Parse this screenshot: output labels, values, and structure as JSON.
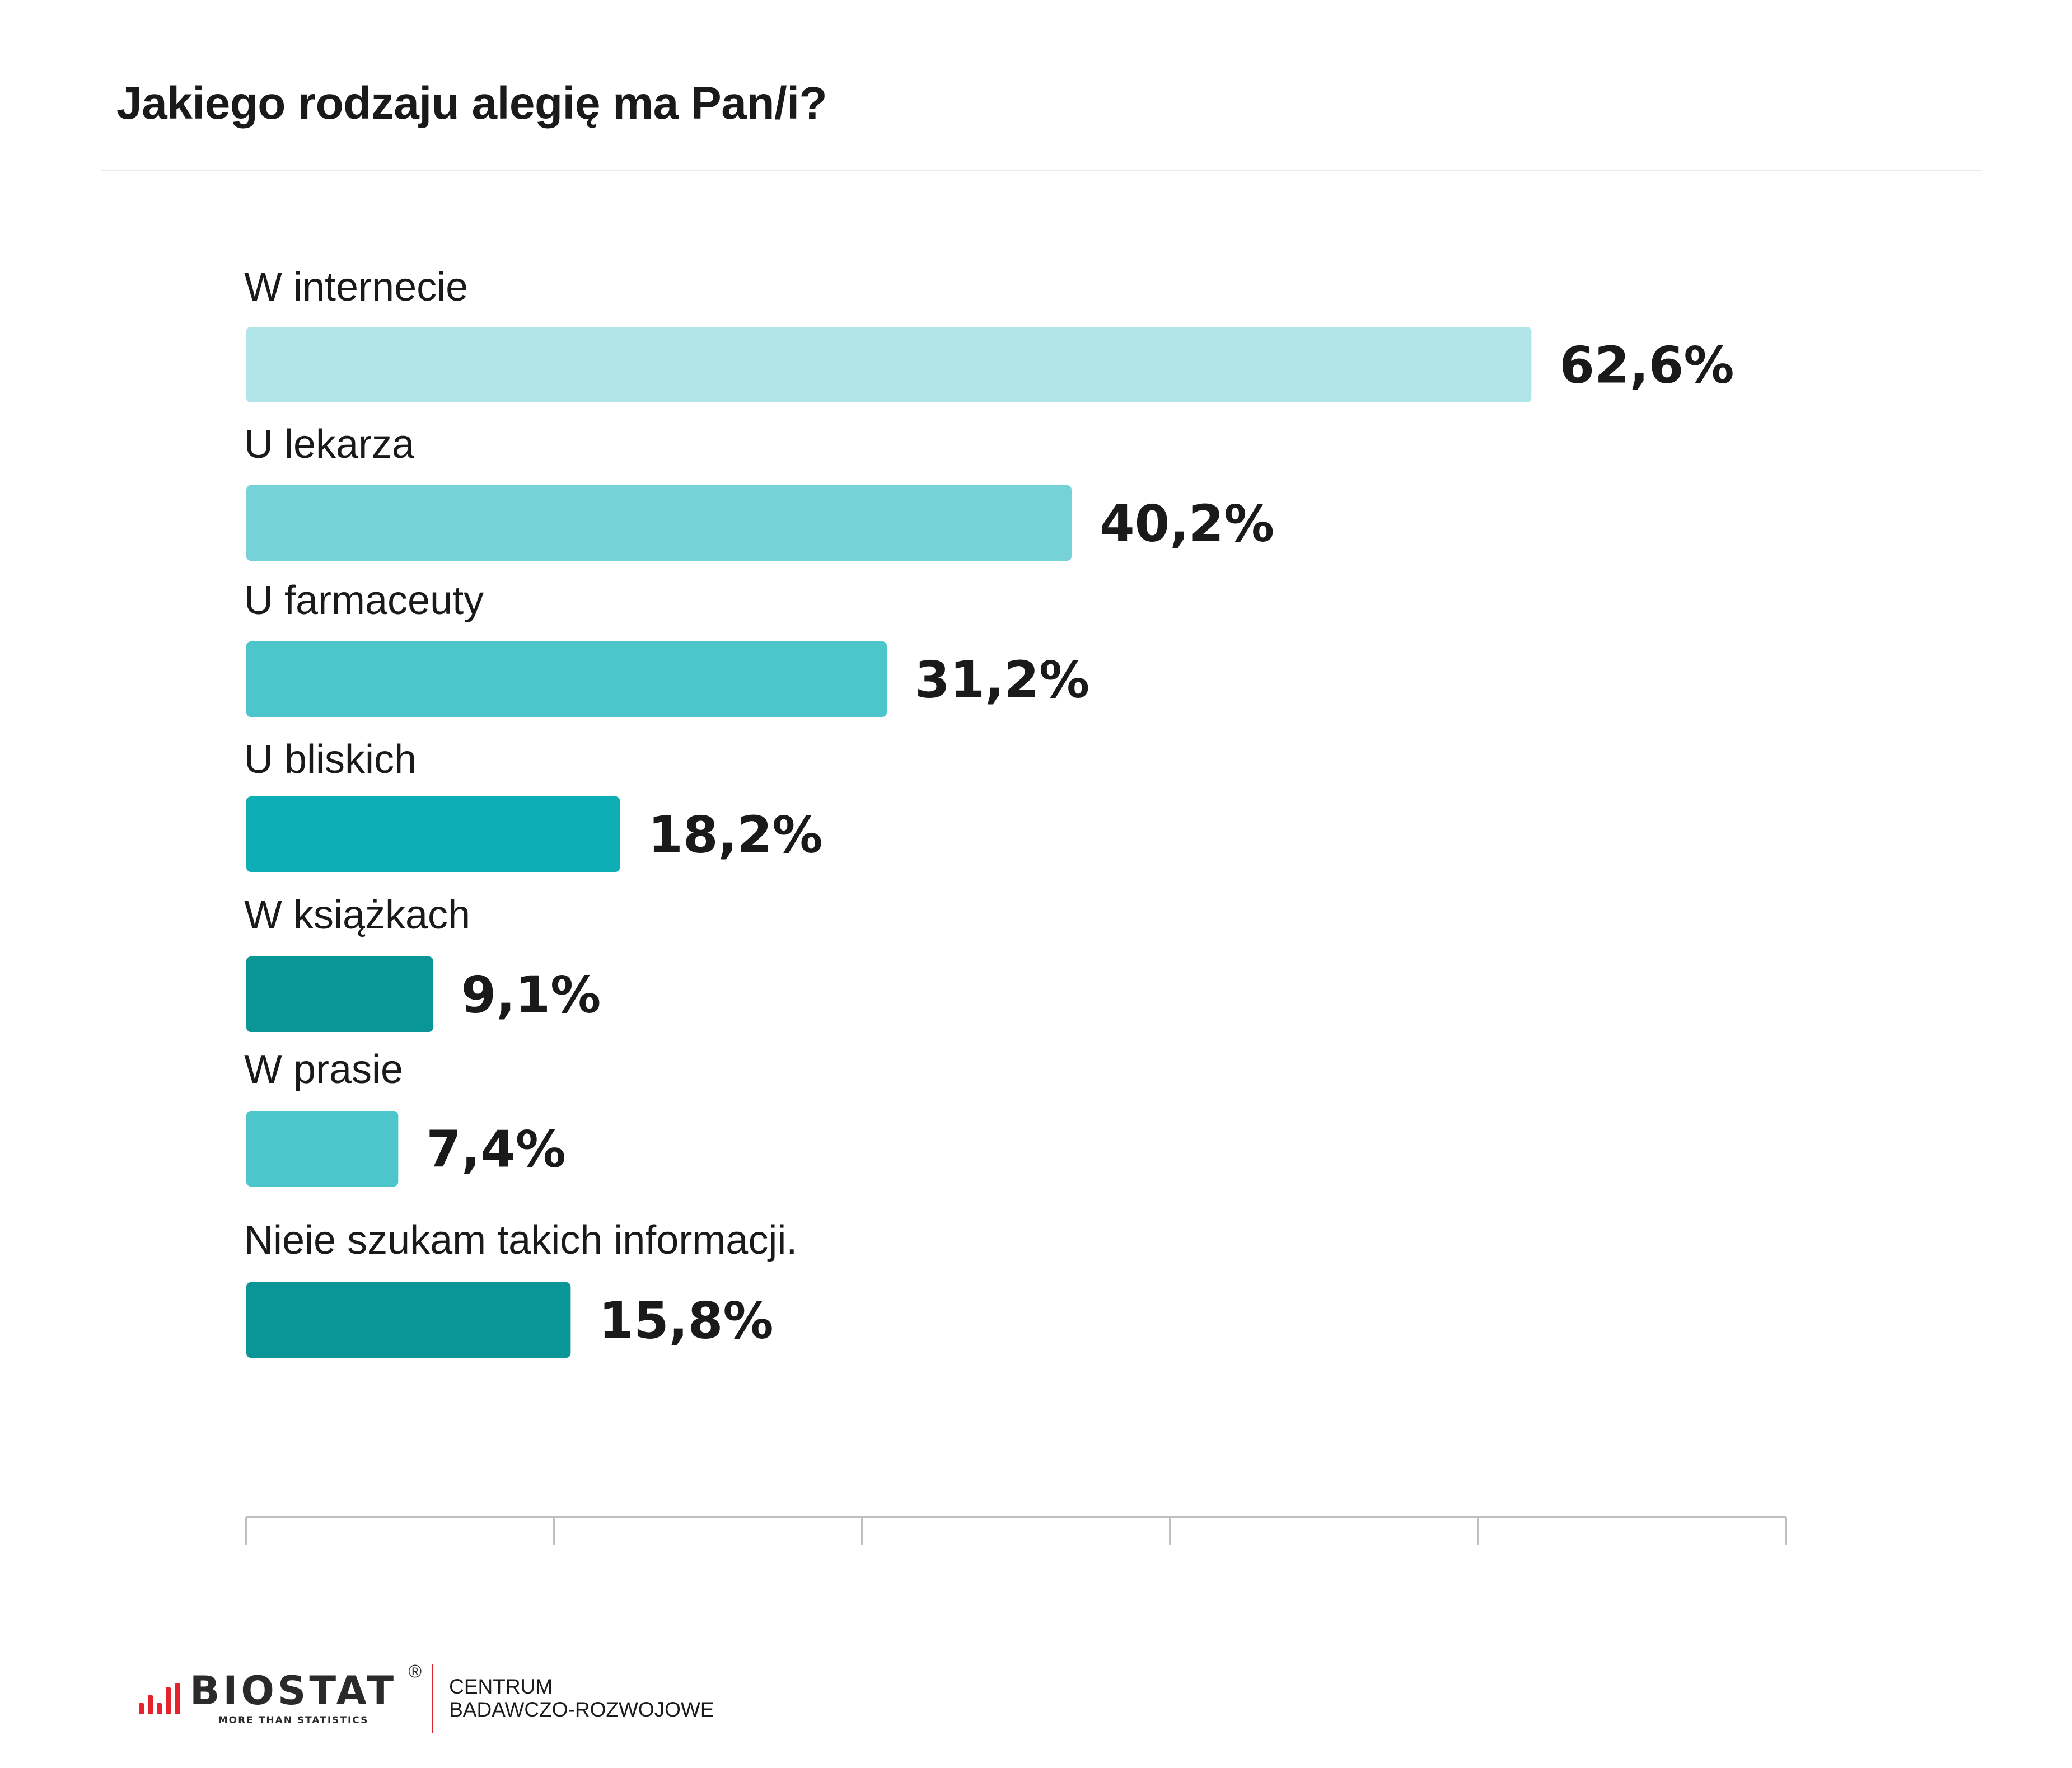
{
  "title": "Jakiego rodzaju alegię ma Pan/i?",
  "chart_data": {
    "type": "bar",
    "orientation": "horizontal",
    "categories": [
      "W internecie",
      "U lekarza",
      "U farmaceuty",
      "U bliskich",
      "W książkach",
      "W prasie",
      "Nieie szukam takich informacji."
    ],
    "values": [
      62.6,
      40.2,
      31.2,
      18.2,
      9.1,
      7.4,
      15.8
    ],
    "value_labels": [
      "62,6%",
      "40,2%",
      "31,2%",
      "18,2%",
      "9,1%",
      "7,4%",
      "15,8%"
    ],
    "bar_colors": [
      "#b0e4e7",
      "#75d2d7",
      "#4cc5cb",
      "#0eaeb6",
      "#0a9697",
      "#4cc5cb",
      "#0a9697"
    ],
    "xlim": [
      0,
      75
    ],
    "ticks": [
      0,
      15,
      30,
      45,
      60,
      75
    ],
    "tick_labels_shown": false,
    "grid": false,
    "legend": "none",
    "unit": "%"
  },
  "footer": {
    "logo_word": "BIOSTAT",
    "logo_tagline": "MORE THAN STATISTICS",
    "registered_mark": "®",
    "centrum_line1": "CENTRUM",
    "centrum_line2": "BADAWCZO-ROZWOJOWE",
    "brand_color": "#e5232c"
  }
}
